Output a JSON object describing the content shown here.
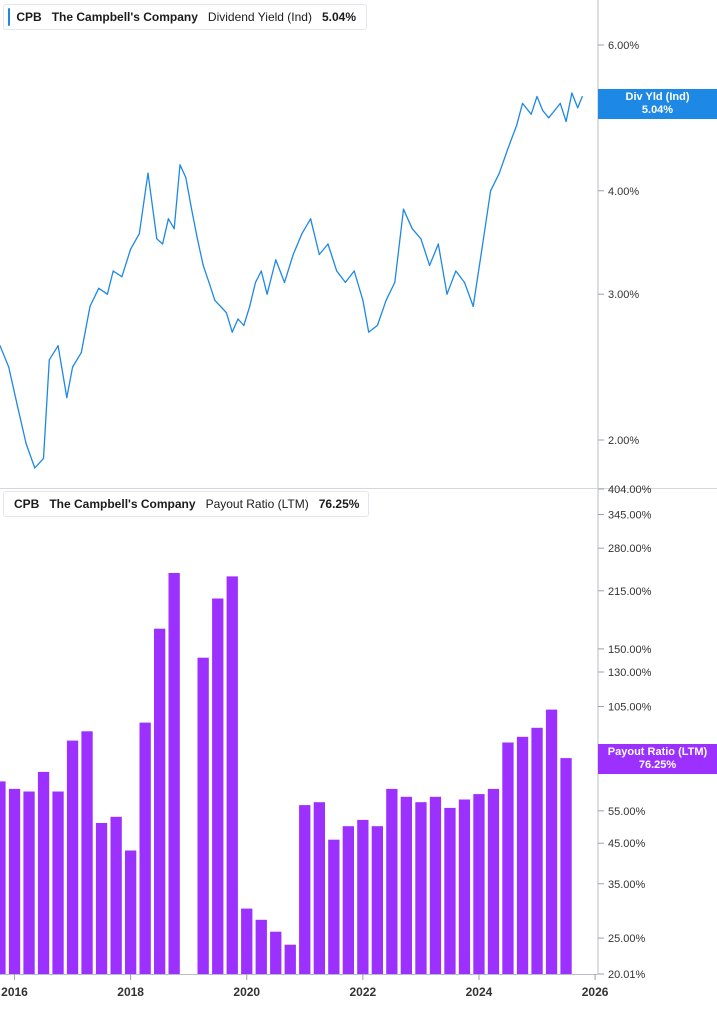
{
  "chart_data": [
    {
      "type": "line",
      "legend": {
        "ticker": "CPB",
        "company": "The Campbell's Company",
        "metric": "Dividend Yield (Ind)",
        "value": "5.04%"
      },
      "badge": {
        "label": "Div Yld (Ind)",
        "value": "5.04%"
      },
      "y_scale": "log",
      "ylim": [
        1.75,
        6.8
      ],
      "y_ticks": [
        "6.00%",
        "4.00%",
        "3.00%",
        "2.00%"
      ],
      "y_tick_values": [
        6,
        4,
        3,
        2
      ],
      "series": [
        {
          "color": "#1e88e5",
          "x": [
            2015.75,
            2015.9,
            2016.05,
            2016.2,
            2016.35,
            2016.5,
            2016.6,
            2016.75,
            2016.9,
            2017.0,
            2017.15,
            2017.3,
            2017.45,
            2017.6,
            2017.7,
            2017.85,
            2018.0,
            2018.15,
            2018.3,
            2018.45,
            2018.55,
            2018.65,
            2018.75,
            2018.85,
            2018.95,
            2019.05,
            2019.15,
            2019.25,
            2019.35,
            2019.45,
            2019.55,
            2019.65,
            2019.75,
            2019.85,
            2019.95,
            2020.05,
            2020.15,
            2020.25,
            2020.35,
            2020.5,
            2020.65,
            2020.8,
            2020.95,
            2021.1,
            2021.25,
            2021.4,
            2021.55,
            2021.7,
            2021.85,
            2022.0,
            2022.1,
            2022.25,
            2022.4,
            2022.55,
            2022.7,
            2022.85,
            2023.0,
            2023.15,
            2023.3,
            2023.45,
            2023.6,
            2023.75,
            2023.9,
            2024.05,
            2024.2,
            2024.35,
            2024.5,
            2024.65,
            2024.75,
            2024.9,
            2025.0,
            2025.1,
            2025.2,
            2025.3,
            2025.4,
            2025.5,
            2025.6,
            2025.7,
            2025.78
          ],
          "values": [
            2.6,
            2.45,
            2.2,
            1.98,
            1.85,
            1.9,
            2.5,
            2.6,
            2.25,
            2.45,
            2.55,
            2.9,
            3.05,
            3.0,
            3.2,
            3.15,
            3.4,
            3.55,
            4.2,
            3.5,
            3.45,
            3.7,
            3.6,
            4.3,
            4.15,
            3.8,
            3.5,
            3.25,
            3.1,
            2.95,
            2.9,
            2.85,
            2.7,
            2.8,
            2.75,
            2.9,
            3.1,
            3.2,
            3.0,
            3.3,
            3.1,
            3.35,
            3.55,
            3.7,
            3.35,
            3.45,
            3.2,
            3.1,
            3.2,
            2.95,
            2.7,
            2.75,
            2.95,
            3.1,
            3.8,
            3.6,
            3.5,
            3.25,
            3.45,
            3.0,
            3.2,
            3.1,
            2.9,
            3.4,
            4.0,
            4.2,
            4.5,
            4.8,
            5.1,
            4.95,
            5.2,
            5.0,
            4.9,
            5.0,
            5.1,
            4.85,
            5.25,
            5.04,
            5.2
          ]
        }
      ]
    },
    {
      "type": "bar",
      "legend": {
        "ticker": "CPB",
        "company": "The Campbell's Company",
        "metric": "Payout Ratio (LTM)",
        "value": "76.25%"
      },
      "badge": {
        "label": "Payout Ratio (LTM)",
        "value": "76.25%"
      },
      "y_scale": "log",
      "ylim": [
        20.01,
        404
      ],
      "y_ticks": [
        "404.00%",
        "345.00%",
        "280.00%",
        "215.00%",
        "150.00%",
        "130.00%",
        "105.00%",
        "55.00%",
        "45.00%",
        "35.00%",
        "25.00%",
        "20.01%"
      ],
      "y_tick_values": [
        404,
        345,
        280,
        215,
        150,
        130,
        105,
        55,
        45,
        35,
        25,
        20.01
      ],
      "highlight_tick": "76.25%",
      "x_ticks": [
        "2016",
        "2018",
        "2020",
        "2022",
        "2024",
        "2026"
      ],
      "x_tick_values": [
        2016,
        2018,
        2020,
        2022,
        2024,
        2026
      ],
      "xlim": [
        2015.75,
        2026.05
      ],
      "bar_color": "#9b30ff",
      "x": [
        2015.75,
        2016.0,
        2016.25,
        2016.5,
        2016.75,
        2017.0,
        2017.25,
        2017.5,
        2017.75,
        2018.0,
        2018.25,
        2018.5,
        2018.75,
        2019.0,
        2019.25,
        2019.5,
        2019.75,
        2020.0,
        2020.25,
        2020.5,
        2020.75,
        2021.0,
        2021.25,
        2021.5,
        2021.75,
        2022.0,
        2022.25,
        2022.5,
        2022.75,
        2023.0,
        2023.25,
        2023.5,
        2023.75,
        2024.0,
        2024.25,
        2024.5,
        2024.75,
        2025.0,
        2025.25,
        2025.5
      ],
      "values": [
        66,
        63,
        62,
        70,
        62,
        85,
        90,
        51,
        53,
        43,
        95,
        170,
        240,
        null,
        142,
        205,
        235,
        30,
        28,
        26,
        24,
        57,
        58,
        46,
        50,
        52,
        50,
        63,
        60,
        58,
        60,
        56,
        59,
        61,
        63,
        84,
        87,
        92,
        103,
        76.25
      ]
    }
  ]
}
